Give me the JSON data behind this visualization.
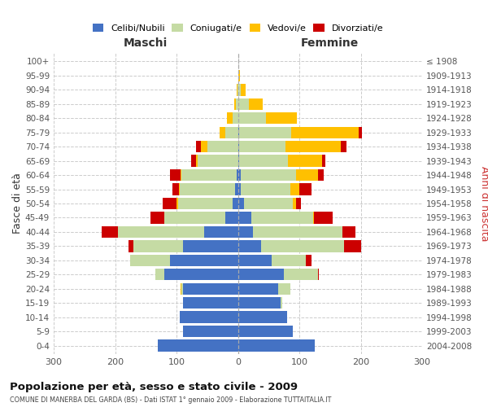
{
  "age_groups": [
    "0-4",
    "5-9",
    "10-14",
    "15-19",
    "20-24",
    "25-29",
    "30-34",
    "35-39",
    "40-44",
    "45-49",
    "50-54",
    "55-59",
    "60-64",
    "65-69",
    "70-74",
    "75-79",
    "80-84",
    "85-89",
    "90-94",
    "95-99",
    "100+"
  ],
  "birth_years": [
    "2004-2008",
    "1999-2003",
    "1994-1998",
    "1989-1993",
    "1984-1988",
    "1979-1983",
    "1974-1978",
    "1969-1973",
    "1964-1968",
    "1959-1963",
    "1954-1958",
    "1949-1953",
    "1944-1948",
    "1939-1943",
    "1934-1938",
    "1929-1933",
    "1924-1928",
    "1919-1923",
    "1914-1918",
    "1909-1913",
    "≤ 1908"
  ],
  "males": {
    "celibi": [
      130,
      90,
      95,
      90,
      90,
      120,
      110,
      90,
      55,
      20,
      8,
      5,
      2,
      0,
      0,
      0,
      0,
      0,
      0,
      0,
      0
    ],
    "coniugati": [
      0,
      0,
      0,
      0,
      2,
      15,
      65,
      80,
      140,
      100,
      90,
      90,
      90,
      65,
      50,
      20,
      8,
      3,
      1,
      0,
      0
    ],
    "vedovi": [
      0,
      0,
      0,
      0,
      1,
      0,
      0,
      0,
      0,
      0,
      2,
      1,
      1,
      3,
      10,
      10,
      10,
      3,
      1,
      0,
      0
    ],
    "divorziati": [
      0,
      0,
      0,
      0,
      0,
      0,
      0,
      8,
      27,
      22,
      22,
      10,
      18,
      8,
      8,
      0,
      0,
      0,
      0,
      0,
      0
    ]
  },
  "females": {
    "nubili": [
      125,
      90,
      80,
      70,
      65,
      75,
      55,
      38,
      25,
      22,
      10,
      5,
      5,
      2,
      2,
      2,
      1,
      0,
      0,
      0,
      0
    ],
    "coniugate": [
      0,
      0,
      0,
      2,
      20,
      55,
      55,
      135,
      145,
      100,
      80,
      80,
      90,
      80,
      75,
      85,
      45,
      18,
      5,
      1,
      0
    ],
    "vedove": [
      0,
      0,
      0,
      0,
      0,
      0,
      0,
      0,
      0,
      2,
      5,
      15,
      35,
      55,
      90,
      110,
      50,
      22,
      8,
      2,
      0
    ],
    "divorziate": [
      0,
      0,
      0,
      0,
      0,
      2,
      10,
      28,
      22,
      30,
      8,
      20,
      10,
      5,
      10,
      5,
      0,
      0,
      0,
      0,
      0
    ]
  },
  "colors": {
    "celibi": "#4472c4",
    "coniugati": "#c5dba4",
    "vedovi": "#ffc000",
    "divorziati": "#cc0000"
  },
  "title": "Popolazione per età, sesso e stato civile - 2009",
  "subtitle": "COMUNE DI MANERBA DEL GARDA (BS) - Dati ISTAT 1° gennaio 2009 - Elaborazione TUTTAITALIA.IT",
  "label_maschi": "Maschi",
  "label_femmine": "Femmine",
  "ylabel_left": "Fasce di età",
  "ylabel_right": "Anni di nascita",
  "xlim": 300,
  "background_color": "#ffffff",
  "grid_color": "#cccccc"
}
